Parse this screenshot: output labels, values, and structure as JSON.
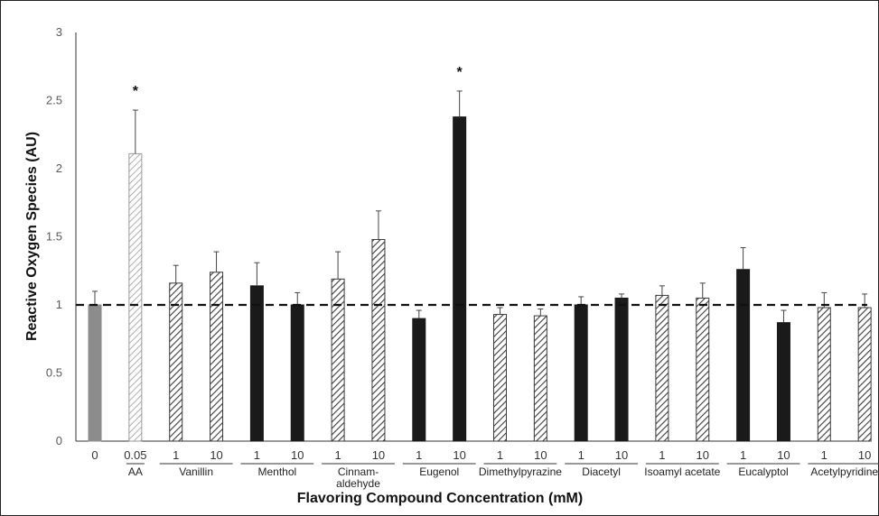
{
  "chart_data": {
    "type": "bar",
    "ylabel": "Reactive Oxygen Species (AU)",
    "xlabel": "Flavoring Compound Concentration (mM)",
    "ylim": [
      0,
      3
    ],
    "yticks": [
      "0",
      "0.5",
      "1",
      "1.5",
      "2",
      "2.5",
      "3"
    ],
    "reference_line": 1,
    "colors": {
      "gray": "#8c8c8c",
      "black": "#1a1a1a",
      "hatch": "#3a3a3a",
      "light_hatch": "#9a9a9a"
    },
    "bars": [
      {
        "label": "0",
        "value": 1.0,
        "error": 0.1,
        "style": "gray",
        "sig": ""
      },
      {
        "label": "0.05",
        "value": 2.11,
        "error": 0.32,
        "style": "light_hatch",
        "sig": "*"
      },
      {
        "label": "1",
        "value": 1.16,
        "error": 0.13,
        "style": "hatch",
        "sig": ""
      },
      {
        "label": "10",
        "value": 1.24,
        "error": 0.15,
        "style": "hatch",
        "sig": ""
      },
      {
        "label": "1",
        "value": 1.14,
        "error": 0.17,
        "style": "black",
        "sig": ""
      },
      {
        "label": "10",
        "value": 1.0,
        "error": 0.09,
        "style": "black",
        "sig": ""
      },
      {
        "label": "1",
        "value": 1.19,
        "error": 0.2,
        "style": "hatch",
        "sig": ""
      },
      {
        "label": "10",
        "value": 1.48,
        "error": 0.21,
        "style": "hatch",
        "sig": ""
      },
      {
        "label": "1",
        "value": 0.9,
        "error": 0.06,
        "style": "black",
        "sig": ""
      },
      {
        "label": "10",
        "value": 2.38,
        "error": 0.19,
        "style": "black",
        "sig": "*"
      },
      {
        "label": "1",
        "value": 0.93,
        "error": 0.05,
        "style": "hatch",
        "sig": ""
      },
      {
        "label": "10",
        "value": 0.92,
        "error": 0.05,
        "style": "hatch",
        "sig": ""
      },
      {
        "label": "1",
        "value": 1.0,
        "error": 0.06,
        "style": "black",
        "sig": ""
      },
      {
        "label": "10",
        "value": 1.05,
        "error": 0.03,
        "style": "black",
        "sig": ""
      },
      {
        "label": "1",
        "value": 1.07,
        "error": 0.07,
        "style": "hatch",
        "sig": ""
      },
      {
        "label": "10",
        "value": 1.05,
        "error": 0.11,
        "style": "hatch",
        "sig": ""
      },
      {
        "label": "1",
        "value": 1.26,
        "error": 0.16,
        "style": "black",
        "sig": ""
      },
      {
        "label": "10",
        "value": 0.87,
        "error": 0.09,
        "style": "black",
        "sig": ""
      },
      {
        "label": "1",
        "value": 0.98,
        "error": 0.11,
        "style": "hatch",
        "sig": ""
      },
      {
        "label": "10",
        "value": 0.98,
        "error": 0.1,
        "style": "hatch",
        "sig": ""
      }
    ],
    "groups": [
      {
        "name": "AA",
        "bars": [
          1,
          1
        ]
      },
      {
        "name": "Vanillin",
        "bars": [
          2,
          3
        ]
      },
      {
        "name": "Menthol",
        "bars": [
          4,
          5
        ]
      },
      {
        "name": "Cinnam-\naldehyde",
        "bars": [
          6,
          7
        ]
      },
      {
        "name": "Eugenol",
        "bars": [
          8,
          9
        ]
      },
      {
        "name": "Dimethylpyrazine",
        "bars": [
          10,
          11
        ]
      },
      {
        "name": "Diacetyl",
        "bars": [
          12,
          13
        ]
      },
      {
        "name": "Isoamyl acetate",
        "bars": [
          14,
          15
        ]
      },
      {
        "name": "Eucalyptol",
        "bars": [
          16,
          17
        ]
      },
      {
        "name": "Acetylpyridine",
        "bars": [
          18,
          19
        ]
      }
    ]
  }
}
